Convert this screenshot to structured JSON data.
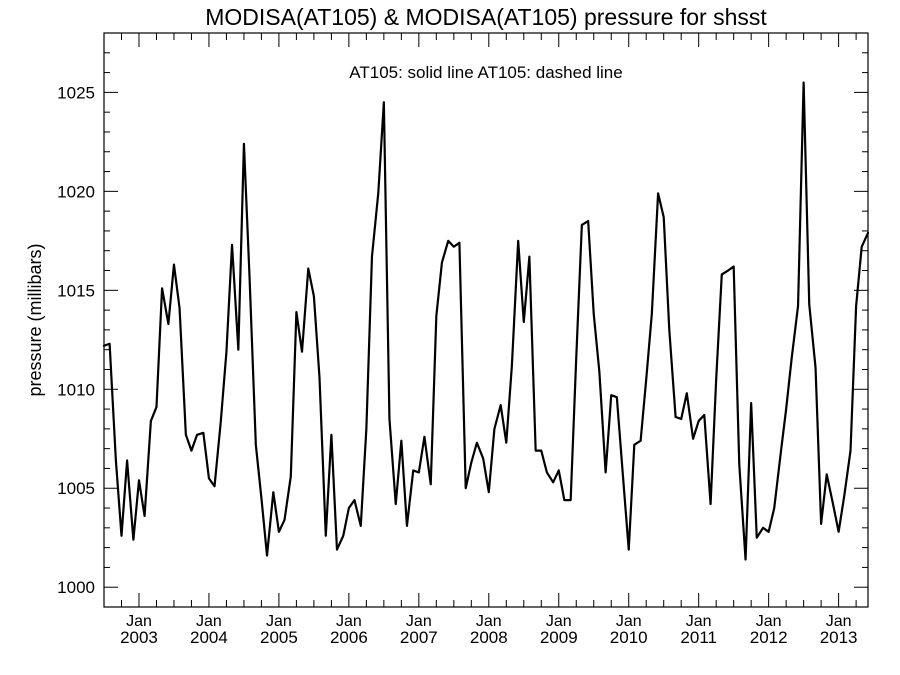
{
  "chart_data": {
    "type": "line",
    "title": "MODISA(AT105) & MODISA(AT105)  pressure for shsst",
    "legend_text": "AT105: solid line   AT105: dashed line",
    "ylabel": "pressure (millibars)",
    "ylim": [
      999,
      1028
    ],
    "xlim": [
      2002.5,
      2013.42
    ],
    "y_ticks": [
      "1000",
      "1005",
      "1010",
      "1015",
      "1020",
      "1025"
    ],
    "x_ticks": [
      {
        "month": "Jan",
        "year": "2003"
      },
      {
        "month": "Jan",
        "year": "2004"
      },
      {
        "month": "Jan",
        "year": "2005"
      },
      {
        "month": "Jan",
        "year": "2006"
      },
      {
        "month": "Jan",
        "year": "2007"
      },
      {
        "month": "Jan",
        "year": "2008"
      },
      {
        "month": "Jan",
        "year": "2009"
      },
      {
        "month": "Jan",
        "year": "2010"
      },
      {
        "month": "Jan",
        "year": "2011"
      },
      {
        "month": "Jan",
        "year": "2012"
      },
      {
        "month": "Jan",
        "year": "2013"
      }
    ],
    "grid": false,
    "series": [
      {
        "name": "AT105",
        "style": "solid",
        "color": "#000000",
        "points": [
          [
            2002.5,
            1012.2
          ],
          [
            2002.58,
            1012.3
          ],
          [
            2002.67,
            1006.4
          ],
          [
            2002.75,
            1002.6
          ],
          [
            2002.83,
            1006.4
          ],
          [
            2002.92,
            1002.4
          ],
          [
            2003.0,
            1005.4
          ],
          [
            2003.08,
            1003.6
          ],
          [
            2003.17,
            1008.4
          ],
          [
            2003.25,
            1009.1
          ],
          [
            2003.33,
            1015.1
          ],
          [
            2003.42,
            1013.3
          ],
          [
            2003.5,
            1016.3
          ],
          [
            2003.58,
            1014.1
          ],
          [
            2003.67,
            1007.7
          ],
          [
            2003.75,
            1006.9
          ],
          [
            2003.83,
            1007.7
          ],
          [
            2003.92,
            1007.8
          ],
          [
            2004.0,
            1005.5
          ],
          [
            2004.08,
            1005.1
          ],
          [
            2004.17,
            1008.4
          ],
          [
            2004.25,
            1011.9
          ],
          [
            2004.33,
            1017.3
          ],
          [
            2004.42,
            1012.0
          ],
          [
            2004.5,
            1022.4
          ],
          [
            2004.58,
            1015.7
          ],
          [
            2004.67,
            1007.2
          ],
          [
            2004.75,
            1004.5
          ],
          [
            2004.83,
            1001.6
          ],
          [
            2004.92,
            1004.8
          ],
          [
            2005.0,
            1002.8
          ],
          [
            2005.08,
            1003.4
          ],
          [
            2005.17,
            1005.6
          ],
          [
            2005.25,
            1013.9
          ],
          [
            2005.33,
            1011.9
          ],
          [
            2005.42,
            1016.1
          ],
          [
            2005.5,
            1014.7
          ],
          [
            2005.58,
            1010.6
          ],
          [
            2005.67,
            1002.6
          ],
          [
            2005.75,
            1007.7
          ],
          [
            2005.83,
            1001.9
          ],
          [
            2005.92,
            1002.6
          ],
          [
            2006.0,
            1004.0
          ],
          [
            2006.08,
            1004.4
          ],
          [
            2006.17,
            1003.1
          ],
          [
            2006.25,
            1008.0
          ],
          [
            2006.33,
            1016.7
          ],
          [
            2006.42,
            1019.9
          ],
          [
            2006.5,
            1024.5
          ],
          [
            2006.58,
            1008.5
          ],
          [
            2006.67,
            1004.2
          ],
          [
            2006.75,
            1007.4
          ],
          [
            2006.83,
            1003.1
          ],
          [
            2006.92,
            1005.9
          ],
          [
            2007.0,
            1005.8
          ],
          [
            2007.08,
            1007.6
          ],
          [
            2007.17,
            1005.2
          ],
          [
            2007.25,
            1013.7
          ],
          [
            2007.33,
            1016.4
          ],
          [
            2007.42,
            1017.5
          ],
          [
            2007.5,
            1017.2
          ],
          [
            2007.58,
            1017.4
          ],
          [
            2007.67,
            1005.0
          ],
          [
            2007.75,
            1006.3
          ],
          [
            2007.83,
            1007.3
          ],
          [
            2007.92,
            1006.5
          ],
          [
            2008.0,
            1004.8
          ],
          [
            2008.08,
            1008.0
          ],
          [
            2008.17,
            1009.2
          ],
          [
            2008.25,
            1007.3
          ],
          [
            2008.33,
            1011.2
          ],
          [
            2008.42,
            1017.5
          ],
          [
            2008.5,
            1013.4
          ],
          [
            2008.58,
            1016.7
          ],
          [
            2008.67,
            1006.9
          ],
          [
            2008.75,
            1006.9
          ],
          [
            2008.83,
            1005.8
          ],
          [
            2008.92,
            1005.3
          ],
          [
            2009.0,
            1005.9
          ],
          [
            2009.08,
            1004.4
          ],
          [
            2009.17,
            1004.4
          ],
          [
            2009.25,
            1011.6
          ],
          [
            2009.33,
            1018.3
          ],
          [
            2009.42,
            1018.5
          ],
          [
            2009.5,
            1013.8
          ],
          [
            2009.58,
            1010.9
          ],
          [
            2009.67,
            1005.8
          ],
          [
            2009.75,
            1009.7
          ],
          [
            2009.83,
            1009.6
          ],
          [
            2009.92,
            1005.5
          ],
          [
            2010.0,
            1001.9
          ],
          [
            2010.08,
            1007.2
          ],
          [
            2010.17,
            1007.4
          ],
          [
            2010.25,
            1010.5
          ],
          [
            2010.33,
            1013.8
          ],
          [
            2010.42,
            1019.9
          ],
          [
            2010.5,
            1018.7
          ],
          [
            2010.58,
            1013.0
          ],
          [
            2010.67,
            1008.6
          ],
          [
            2010.75,
            1008.5
          ],
          [
            2010.83,
            1009.8
          ],
          [
            2010.92,
            1007.5
          ],
          [
            2011.0,
            1008.4
          ],
          [
            2011.08,
            1008.7
          ],
          [
            2011.17,
            1004.2
          ],
          [
            2011.25,
            1010.5
          ],
          [
            2011.33,
            1015.8
          ],
          [
            2011.42,
            1016.0
          ],
          [
            2011.5,
            1016.2
          ],
          [
            2011.58,
            1006.2
          ],
          [
            2011.67,
            1001.4
          ],
          [
            2011.75,
            1009.3
          ],
          [
            2011.83,
            1002.5
          ],
          [
            2011.92,
            1003.0
          ],
          [
            2012.0,
            1002.8
          ],
          [
            2012.08,
            1004.0
          ],
          [
            2012.17,
            1006.7
          ],
          [
            2012.25,
            1009.0
          ],
          [
            2012.33,
            1011.6
          ],
          [
            2012.42,
            1014.2
          ],
          [
            2012.5,
            1025.5
          ],
          [
            2012.58,
            1014.3
          ],
          [
            2012.67,
            1011.1
          ],
          [
            2012.75,
            1003.2
          ],
          [
            2012.83,
            1005.7
          ],
          [
            2012.92,
            1004.2
          ],
          [
            2013.0,
            1002.8
          ],
          [
            2013.08,
            1004.6
          ],
          [
            2013.17,
            1006.9
          ],
          [
            2013.25,
            1014.2
          ],
          [
            2013.33,
            1017.2
          ],
          [
            2013.42,
            1017.9
          ]
        ]
      }
    ]
  }
}
